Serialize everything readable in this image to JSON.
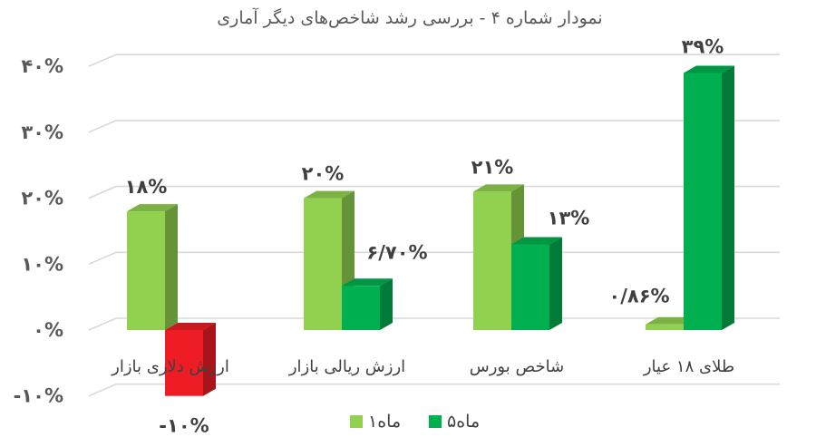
{
  "chart_data": {
    "type": "bar",
    "title": "نمودار شماره ۴ - بررسی رشد شاخص‌های دیگر آماری",
    "xlabel": "",
    "ylabel": "",
    "ylim": [
      -0.1,
      0.4
    ],
    "yticks": [
      {
        "value": 0.4,
        "label": "۴۰%"
      },
      {
        "value": 0.3,
        "label": "۳۰%"
      },
      {
        "value": 0.2,
        "label": "۲۰%"
      },
      {
        "value": 0.1,
        "label": "۱۰%"
      },
      {
        "value": 0.0,
        "label": "۰%"
      },
      {
        "value": -0.1,
        "label": "-۱۰%"
      }
    ],
    "grid": true,
    "legend_position": "bottom",
    "categories": [
      "ارزش دلاری بازار",
      "ارزش ریالی بازار",
      "شاخص بورس",
      "طلای ۱۸ عیار"
    ],
    "series": [
      {
        "name": "۱ماه",
        "color": "#92d050",
        "values": [
          0.18,
          0.2,
          0.21,
          0.0086
        ],
        "labels": [
          "۱۸%",
          "۲۰%",
          "۲۱%",
          "۰/۸۶%"
        ]
      },
      {
        "name": "۵ماه",
        "color": "#00b050",
        "negative_color": "#ee1c24",
        "values": [
          -0.1,
          0.067,
          0.13,
          0.39
        ],
        "labels": [
          "-۱۰%",
          "۶/۷۰%",
          "۱۳%",
          "۳۹%"
        ]
      }
    ]
  }
}
